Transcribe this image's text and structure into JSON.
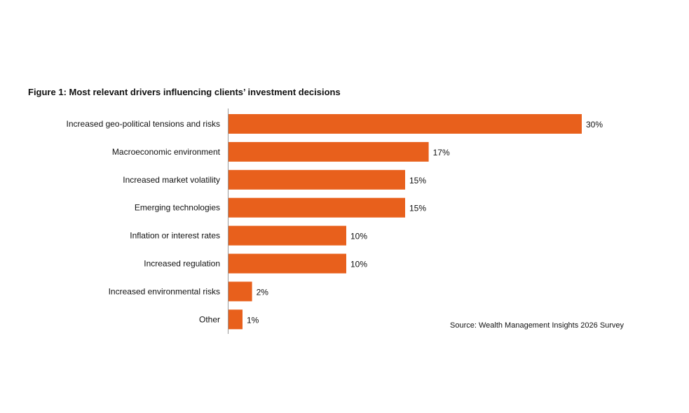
{
  "chart_data": {
    "type": "bar",
    "orientation": "horizontal",
    "title": "Figure 1: Most relevant drivers influencing clients’ investment decisions",
    "categories": [
      "Increased geo-political tensions and risks",
      "Macroeconomic environment",
      "Increased market volatility",
      "Emerging technologies",
      "Inflation or interest rates",
      "Increased regulation",
      "Increased environmental risks",
      "Other"
    ],
    "values": [
      30,
      17,
      15,
      15,
      10,
      10,
      2,
      1
    ],
    "data_labels": [
      "30%",
      "17%",
      "15%",
      "15%",
      "10%",
      "10%",
      "2%",
      "1%"
    ],
    "xlabel": "",
    "ylabel": "",
    "xlim": [
      0,
      30
    ],
    "grid": false,
    "source": "Source: Wealth Management Insights 2026 Survey",
    "bar_color": "#E8601C"
  }
}
